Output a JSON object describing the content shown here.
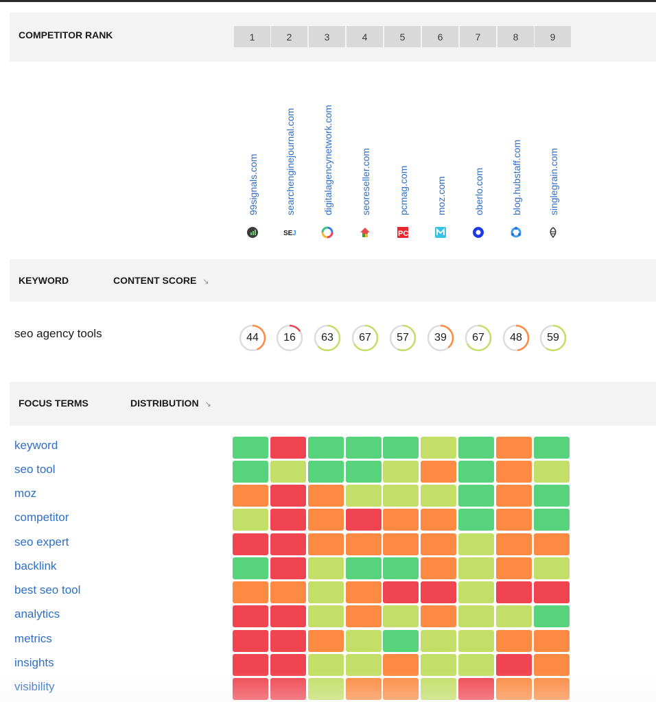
{
  "headers": {
    "competitor_rank": "COMPETITOR RANK",
    "keyword": "KEYWORD",
    "content_score": "CONTENT SCORE",
    "focus_terms": "FOCUS TERMS",
    "distribution": "DISTRIBUTION",
    "sort_icon": "↘"
  },
  "ranks": [
    "1",
    "2",
    "3",
    "4",
    "5",
    "6",
    "7",
    "8",
    "9"
  ],
  "competitors": [
    {
      "domain": "99signals.com",
      "icon": "chart-badge-icon"
    },
    {
      "domain": "searchenginejournal.com",
      "icon": "sej-logo-icon"
    },
    {
      "domain": "digitalagencynetwork.com",
      "icon": "ring-logo-icon"
    },
    {
      "domain": "seoreseller.com",
      "icon": "house-logo-icon"
    },
    {
      "domain": "pcmag.com",
      "icon": "pc-logo-icon"
    },
    {
      "domain": "moz.com",
      "icon": "moz-logo-icon"
    },
    {
      "domain": "oberlo.com",
      "icon": "circle-logo-icon"
    },
    {
      "domain": "blog.hubstaff.com",
      "icon": "hub-logo-icon"
    },
    {
      "domain": "singlegrain.com",
      "icon": "grain-logo-icon"
    }
  ],
  "keyword_row": {
    "keyword": "seo agency tools",
    "scores": [
      44,
      16,
      63,
      67,
      57,
      39,
      67,
      48,
      59
    ]
  },
  "focus_terms": [
    "keyword",
    "seo tool",
    "moz",
    "competitor",
    "seo expert",
    "backlink",
    "best seo tool",
    "analytics",
    "metrics",
    "insights",
    "visibility"
  ],
  "colors": {
    "G": "#57d47b",
    "L": "#c3df68",
    "O": "#fd8a42",
    "R": "#f04550",
    "score_low": "#fd8a42",
    "score_bad": "#f04550",
    "score_good": "#c3df68",
    "ring_track": "#dcdcdc"
  },
  "distribution": [
    [
      "G",
      "R",
      "G",
      "G",
      "G",
      "L",
      "G",
      "O",
      "G"
    ],
    [
      "G",
      "L",
      "G",
      "G",
      "L",
      "O",
      "G",
      "O",
      "L"
    ],
    [
      "O",
      "R",
      "O",
      "L",
      "L",
      "L",
      "G",
      "O",
      "G"
    ],
    [
      "L",
      "R",
      "O",
      "R",
      "O",
      "O",
      "G",
      "O",
      "G"
    ],
    [
      "R",
      "R",
      "O",
      "O",
      "O",
      "O",
      "L",
      "O",
      "O"
    ],
    [
      "G",
      "R",
      "L",
      "G",
      "G",
      "O",
      "L",
      "O",
      "L"
    ],
    [
      "O",
      "O",
      "L",
      "O",
      "R",
      "R",
      "L",
      "R",
      "R"
    ],
    [
      "R",
      "R",
      "L",
      "O",
      "L",
      "O",
      "L",
      "L",
      "G"
    ],
    [
      "R",
      "R",
      "O",
      "L",
      "G",
      "L",
      "L",
      "O",
      "O"
    ],
    [
      "R",
      "R",
      "L",
      "L",
      "O",
      "L",
      "L",
      "R",
      "O"
    ],
    [
      "R",
      "R",
      "L",
      "O",
      "O",
      "L",
      "R",
      "O",
      "O"
    ]
  ]
}
